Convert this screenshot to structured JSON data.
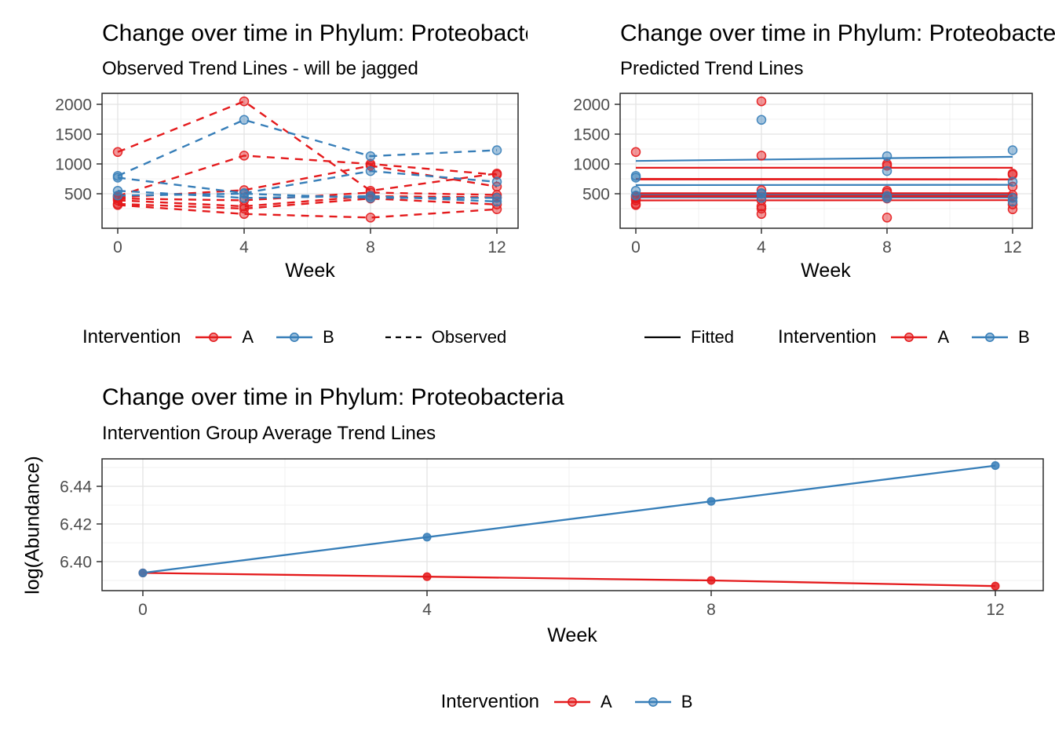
{
  "colors": {
    "intervention_a": "#E41A1C",
    "intervention_b": "#377EB8",
    "reference_line": "#000000",
    "grid_major": "#E3E3E3",
    "grid_minor": "#F0F0F0",
    "panel_border": "#2B2B2B",
    "tick_mark": "#333333",
    "tick_label": "#4D4D4D"
  },
  "chart_data": [
    {
      "type": "line",
      "title": "Change over time in Phylum: Proteobacteria",
      "subtitle": "Observed Trend Lines - will be jagged",
      "xlabel": "Week",
      "ylabel": "",
      "line_style": "dashed",
      "x": [
        0,
        4,
        8,
        12
      ],
      "x_ticks": [
        {
          "v": 0,
          "label": "0"
        },
        {
          "v": 4,
          "label": "4"
        },
        {
          "v": 8,
          "label": "8"
        },
        {
          "v": 12,
          "label": "12"
        }
      ],
      "y_ticks": [
        {
          "v": 500,
          "label": "500"
        },
        {
          "v": 1000,
          "label": "1000"
        },
        {
          "v": 1500,
          "label": "1500"
        },
        {
          "v": 2000,
          "label": "2000"
        }
      ],
      "ylim": [
        -80,
        2185
      ],
      "legend": {
        "title": "Intervention",
        "items": [
          {
            "label": "A",
            "group": "A"
          },
          {
            "label": "B",
            "group": "B"
          }
        ],
        "linetype_item": {
          "label": "Observed",
          "style": "dashed"
        }
      },
      "series": [
        {
          "group": "A",
          "values": [
            1200,
            2050,
            550,
            840
          ]
        },
        {
          "group": "A",
          "values": [
            460,
            1140,
            1000,
            820
          ]
        },
        {
          "group": "A",
          "values": [
            440,
            560,
            970,
            620
          ]
        },
        {
          "group": "A",
          "values": [
            420,
            390,
            520,
            480
          ]
        },
        {
          "group": "A",
          "values": [
            390,
            290,
            460,
            440
          ]
        },
        {
          "group": "A",
          "values": [
            330,
            250,
            420,
            320
          ]
        },
        {
          "group": "A",
          "values": [
            310,
            160,
            100,
            240
          ]
        },
        {
          "group": "B",
          "values": [
            800,
            1740,
            1130,
            1230
          ]
        },
        {
          "group": "B",
          "values": [
            770,
            510,
            880,
            700
          ]
        },
        {
          "group": "B",
          "values": [
            550,
            430,
            460,
            370
          ]
        },
        {
          "group": "B",
          "values": [
            470,
            500,
            430,
            430
          ]
        }
      ]
    },
    {
      "type": "scatter",
      "title": "Change over time in Phylum: Proteobacteria",
      "subtitle": "Predicted Trend Lines",
      "xlabel": "Week",
      "ylabel": "",
      "line_style": "solid",
      "x": [
        0,
        4,
        8,
        12
      ],
      "x_ticks": [
        {
          "v": 0,
          "label": "0"
        },
        {
          "v": 4,
          "label": "4"
        },
        {
          "v": 8,
          "label": "8"
        },
        {
          "v": 12,
          "label": "12"
        }
      ],
      "y_ticks": [
        {
          "v": 500,
          "label": "500"
        },
        {
          "v": 1000,
          "label": "1000"
        },
        {
          "v": 1500,
          "label": "1500"
        },
        {
          "v": 2000,
          "label": "2000"
        }
      ],
      "ylim": [
        -80,
        2185
      ],
      "legend": {
        "title": "Intervention",
        "items": [
          {
            "label": "A",
            "group": "A"
          },
          {
            "label": "B",
            "group": "B"
          }
        ],
        "linetype_item": {
          "label": "Fitted",
          "style": "solid"
        }
      },
      "points": [
        {
          "group": "A",
          "values": [
            1200,
            2050,
            550,
            840
          ]
        },
        {
          "group": "A",
          "values": [
            460,
            1140,
            1000,
            820
          ]
        },
        {
          "group": "A",
          "values": [
            440,
            560,
            970,
            620
          ]
        },
        {
          "group": "A",
          "values": [
            420,
            390,
            520,
            480
          ]
        },
        {
          "group": "A",
          "values": [
            390,
            290,
            460,
            440
          ]
        },
        {
          "group": "A",
          "values": [
            330,
            250,
            420,
            320
          ]
        },
        {
          "group": "A",
          "values": [
            310,
            160,
            100,
            240
          ]
        },
        {
          "group": "B",
          "values": [
            800,
            1740,
            1130,
            1230
          ]
        },
        {
          "group": "B",
          "values": [
            770,
            510,
            880,
            700
          ]
        },
        {
          "group": "B",
          "values": [
            550,
            430,
            460,
            370
          ]
        },
        {
          "group": "B",
          "values": [
            470,
            500,
            430,
            430
          ]
        }
      ],
      "fitted": [
        {
          "group": "B",
          "x": [
            0,
            12
          ],
          "values": [
            1050,
            1120
          ]
        },
        {
          "group": "B",
          "x": [
            0,
            12
          ],
          "values": [
            645,
            650
          ]
        },
        {
          "group": "B",
          "x": [
            0,
            12
          ],
          "values": [
            488,
            488
          ]
        },
        {
          "group": "B",
          "x": [
            0,
            12
          ],
          "values": [
            440,
            437
          ]
        },
        {
          "group": "A",
          "x": [
            0,
            12
          ],
          "values": [
            935,
            935
          ]
        },
        {
          "group": "A",
          "x": [
            0,
            12
          ],
          "values": [
            750,
            744
          ]
        },
        {
          "group": "A",
          "x": [
            0,
            12
          ],
          "values": [
            740,
            740
          ]
        },
        {
          "group": "A",
          "x": [
            0,
            12
          ],
          "values": [
            508,
            508
          ]
        },
        {
          "group": "A",
          "x": [
            0,
            12
          ],
          "values": [
            462,
            462
          ]
        },
        {
          "group": "A",
          "x": [
            0,
            12
          ],
          "values": [
            452,
            455
          ]
        },
        {
          "group": "A",
          "x": [
            0,
            12
          ],
          "values": [
            388,
            392
          ]
        }
      ]
    },
    {
      "type": "line",
      "title": "Change over time in Phylum: Proteobacteria",
      "subtitle": "Intervention Group Average Trend Lines",
      "xlabel": "Week",
      "ylabel": "log(Abundance)",
      "line_style": "solid",
      "x": [
        0,
        4,
        8,
        12
      ],
      "x_ticks": [
        {
          "v": 0,
          "label": "0"
        },
        {
          "v": 4,
          "label": "4"
        },
        {
          "v": 8,
          "label": "8"
        },
        {
          "v": 12,
          "label": "12"
        }
      ],
      "y_ticks": [
        {
          "v": 6.4,
          "label": "6.40"
        },
        {
          "v": 6.42,
          "label": "6.42"
        },
        {
          "v": 6.44,
          "label": "6.44"
        }
      ],
      "ylim": [
        6.3846,
        6.4546
      ],
      "legend": {
        "title": "Intervention",
        "items": [
          {
            "label": "A",
            "group": "A"
          },
          {
            "label": "B",
            "group": "B"
          }
        ]
      },
      "series": [
        {
          "group": "A",
          "label": "A",
          "values": [
            6.394,
            6.392,
            6.39,
            6.387
          ]
        },
        {
          "group": "B",
          "label": "B",
          "values": [
            6.394,
            6.413,
            6.432,
            6.451
          ]
        }
      ]
    }
  ]
}
